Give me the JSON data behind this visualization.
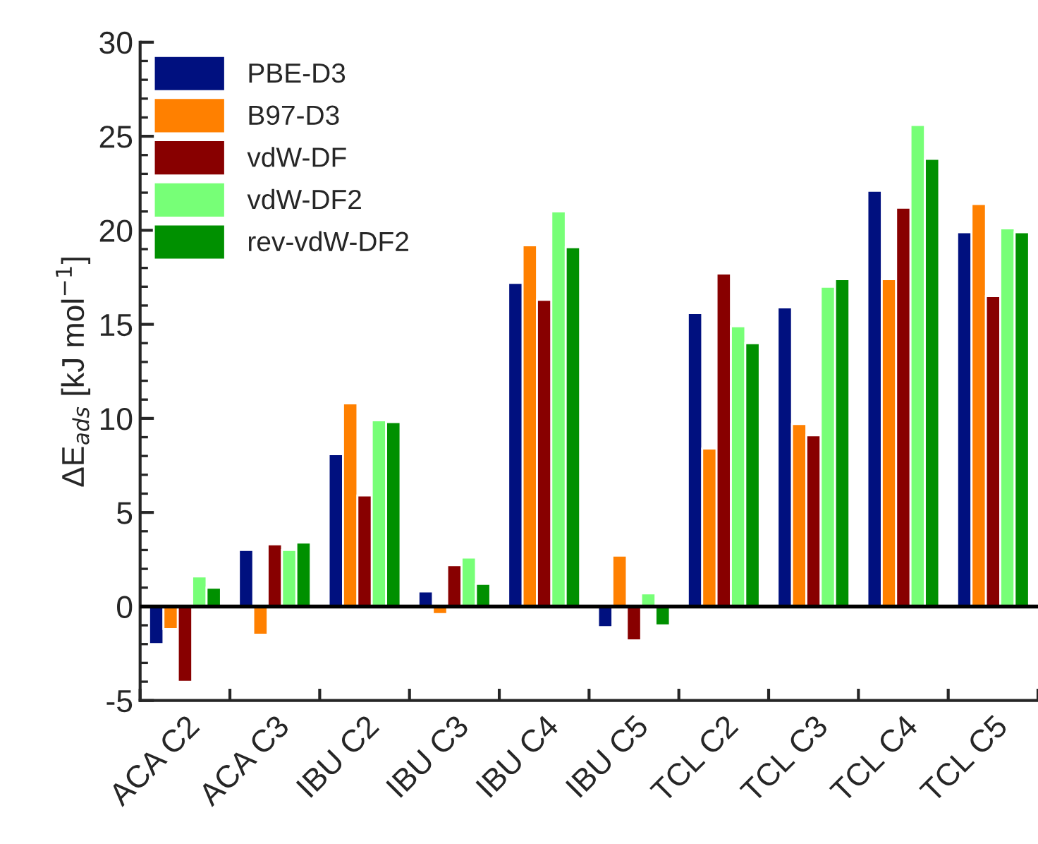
{
  "chart_data": {
    "type": "bar",
    "ylabel": "ΔE$_{ads}$ [kJ mol$^{−1}$]",
    "categories": [
      "ACA C2",
      "ACA C3",
      "IBU C2",
      "IBU C3",
      "IBU C4",
      "IBU C5",
      "TCL C2",
      "TCL C3",
      "TCL C4",
      "TCL C5"
    ],
    "series": [
      {
        "name": "PBE-D3",
        "color": "#00107f",
        "values": [
          -2.0,
          3.0,
          8.1,
          0.8,
          17.2,
          -1.1,
          15.6,
          15.9,
          22.1,
          19.9
        ]
      },
      {
        "name": "B97-D3",
        "color": "#ff8000",
        "values": [
          -1.2,
          -1.5,
          10.8,
          -0.4,
          19.2,
          2.7,
          8.4,
          9.7,
          17.4,
          21.4
        ]
      },
      {
        "name": "vdW-DF",
        "color": "#880000",
        "values": [
          -4.0,
          3.3,
          5.9,
          2.2,
          16.3,
          -1.8,
          17.7,
          9.1,
          21.2,
          16.5
        ]
      },
      {
        "name": "vdW-DF2",
        "color": "#77ff77",
        "values": [
          1.6,
          3.0,
          9.9,
          2.6,
          21.0,
          0.7,
          14.9,
          17.0,
          25.6,
          20.1
        ]
      },
      {
        "name": "rev-vdW-DF2",
        "color": "#009000",
        "values": [
          1.0,
          3.4,
          9.8,
          1.2,
          19.1,
          -1.0,
          14.0,
          17.4,
          23.8,
          19.9
        ]
      }
    ],
    "ylim": [
      -5,
      30
    ],
    "yticks": [
      -5,
      0,
      5,
      10,
      15,
      20,
      25,
      30
    ],
    "ref_lines": [
      {
        "axis": "y",
        "value": 0
      }
    ],
    "legend": "top left",
    "grid": false
  }
}
